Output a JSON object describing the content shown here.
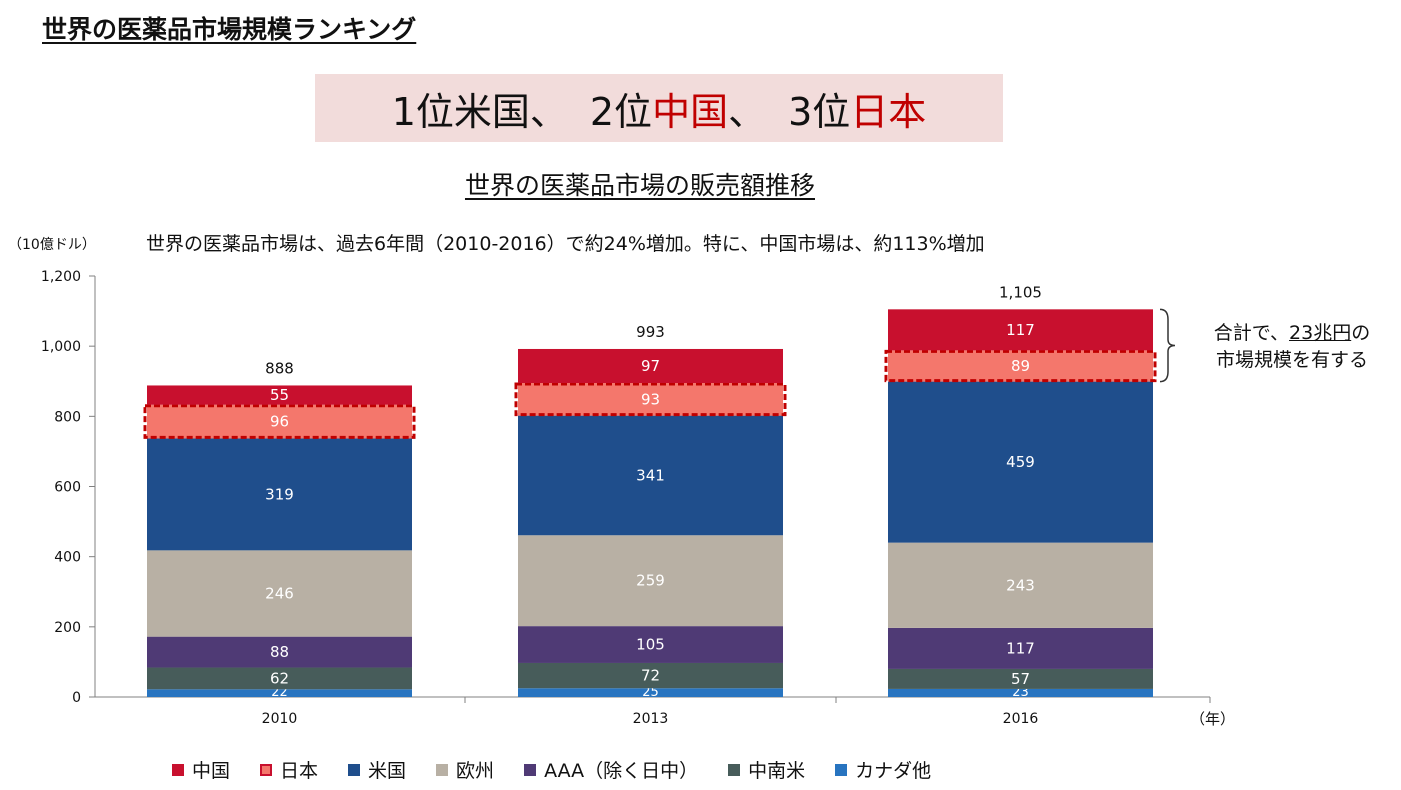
{
  "page_title": "世界の医薬品市場規模ランキング",
  "ranking": {
    "part1": "1位米国、",
    "part2_prefix": "2位",
    "part2_country": "中国",
    "part2_suffix": "、",
    "part3_prefix": "3位",
    "part3_country": "日本"
  },
  "chart_title": "世界の医薬品市場の販売額推移",
  "subtitle": "世界の医薬品市場は、過去6年間（2010-2016）で約24%増加。特に、中国市場は、約113%増加",
  "annotation": {
    "prefix": "合計で、",
    "highlight": "23兆円",
    "suffix": "の",
    "line2": "市場規模を有する"
  },
  "colors": {
    "中国": "#c8102e",
    "日本": "#f4776c",
    "米国": "#1f4e8c",
    "欧州": "#b8b0a4",
    "AAA": "#4f3a75",
    "中南米": "#475c5a",
    "カナダ他": "#2874c0",
    "ranking_highlight": "#c00000",
    "ranking_bg": "#f2dcdb"
  },
  "chart_data": {
    "type": "bar",
    "stacked": true,
    "categories": [
      "2010",
      "2013",
      "2016"
    ],
    "ylabel": "（10億ドル）",
    "xlabel": "（年）",
    "ylim": [
      0,
      1200
    ],
    "yticks": [
      "0",
      "200",
      "400",
      "600",
      "800",
      "1,000",
      "1,200"
    ],
    "ytick_values": [
      0,
      200,
      400,
      600,
      800,
      1000,
      1200
    ],
    "totals": [
      "888",
      "993",
      "1,105"
    ],
    "highlighted_series": "日本",
    "series": [
      {
        "name": "カナダ他",
        "values": [
          22,
          25,
          23
        ]
      },
      {
        "name": "中南米",
        "values": [
          62,
          72,
          57
        ]
      },
      {
        "name": "AAA（除く日中）",
        "values": [
          88,
          105,
          117
        ]
      },
      {
        "name": "欧州",
        "values": [
          246,
          259,
          243
        ]
      },
      {
        "name": "米国",
        "values": [
          319,
          341,
          459
        ]
      },
      {
        "name": "日本",
        "values": [
          96,
          93,
          89
        ]
      },
      {
        "name": "中国",
        "values": [
          55,
          97,
          117
        ]
      }
    ],
    "legend": [
      "中国",
      "日本",
      "米国",
      "欧州",
      "AAA（除く日中）",
      "中南米",
      "カナダ他"
    ],
    "legend_position": "bottom"
  }
}
